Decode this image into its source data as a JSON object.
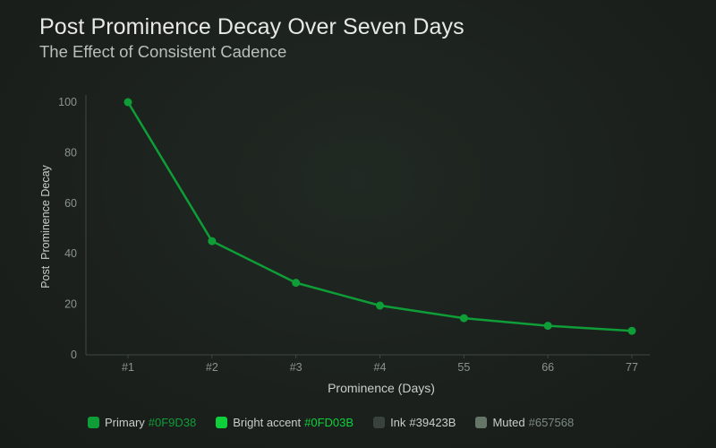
{
  "chart_data": {
    "type": "line",
    "title": "Post Prominence Decay Over Seven Days",
    "subtitle": "The Effect of Consistent Cadence",
    "xlabel": "Prominence (Days)",
    "ylabel": "Post  Prominence Decay",
    "categories": [
      "#1",
      "#2",
      "#3",
      "#4",
      "55",
      "66",
      "77"
    ],
    "series": [
      {
        "values": [
          100,
          45,
          28.5,
          19.5,
          14.5,
          11.5,
          9.5
        ],
        "color": "#0F9D38"
      }
    ],
    "ylim": [
      0,
      100
    ],
    "yticks": [
      "0",
      "20",
      "40",
      "60",
      "80",
      "100"
    ],
    "grid": false,
    "legend_position": "bottom-left"
  },
  "legend": [
    {
      "label": "Primary",
      "code": "#0F9D38",
      "color": "#0F9D38"
    },
    {
      "label": "Bright accent",
      "code": "#0FD03B",
      "color": "#0FD03B"
    },
    {
      "label": "Ink",
      "code": "#39423B",
      "color": "#39423B"
    },
    {
      "label": "Muted",
      "code": "#657568",
      "color": "#657568"
    }
  ]
}
